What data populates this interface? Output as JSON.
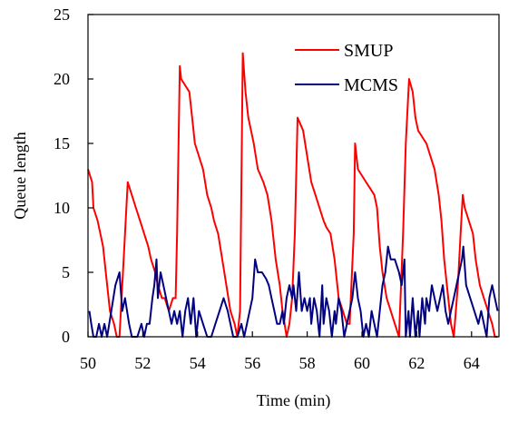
{
  "chart_data": {
    "type": "line",
    "title": "",
    "xlabel": "Time (min)",
    "ylabel": "Queue length",
    "xlim": [
      50,
      65
    ],
    "ylim": [
      0,
      25
    ],
    "xticks": [
      50,
      52,
      54,
      56,
      58,
      60,
      62,
      64
    ],
    "yticks": [
      0,
      5,
      10,
      15,
      20,
      25
    ],
    "grid": false,
    "legend": "top-right",
    "series": [
      {
        "name": "SMUP",
        "color": "#ff0000",
        "points": [
          [
            50.0,
            13
          ],
          [
            50.15,
            12
          ],
          [
            50.2,
            10
          ],
          [
            50.35,
            9
          ],
          [
            50.55,
            7
          ],
          [
            50.65,
            5
          ],
          [
            50.8,
            2
          ],
          [
            50.95,
            1
          ],
          [
            51.05,
            0
          ],
          [
            51.15,
            0
          ],
          [
            51.3,
            6
          ],
          [
            51.45,
            12
          ],
          [
            51.6,
            11
          ],
          [
            51.75,
            10
          ],
          [
            51.9,
            9
          ],
          [
            52.05,
            8
          ],
          [
            52.2,
            7
          ],
          [
            52.3,
            6
          ],
          [
            52.45,
            5
          ],
          [
            52.55,
            4
          ],
          [
            52.7,
            3
          ],
          [
            52.8,
            3
          ],
          [
            52.95,
            2
          ],
          [
            53.1,
            3
          ],
          [
            53.2,
            3
          ],
          [
            53.25,
            8
          ],
          [
            53.35,
            21
          ],
          [
            53.4,
            20
          ],
          [
            53.55,
            19.5
          ],
          [
            53.7,
            19
          ],
          [
            53.8,
            17
          ],
          [
            53.9,
            15
          ],
          [
            54.05,
            14
          ],
          [
            54.2,
            13
          ],
          [
            54.35,
            11
          ],
          [
            54.5,
            10
          ],
          [
            54.6,
            9
          ],
          [
            54.75,
            8
          ],
          [
            54.9,
            6
          ],
          [
            55.05,
            4
          ],
          [
            55.2,
            2
          ],
          [
            55.35,
            1
          ],
          [
            55.45,
            0
          ],
          [
            55.55,
            2
          ],
          [
            55.65,
            22
          ],
          [
            55.75,
            19
          ],
          [
            55.85,
            17
          ],
          [
            55.95,
            16
          ],
          [
            56.05,
            15
          ],
          [
            56.2,
            13
          ],
          [
            56.3,
            12.5
          ],
          [
            56.4,
            12
          ],
          [
            56.55,
            11
          ],
          [
            56.7,
            9
          ],
          [
            56.85,
            6
          ],
          [
            57.0,
            4
          ],
          [
            57.1,
            2
          ],
          [
            57.25,
            0
          ],
          [
            57.35,
            1
          ],
          [
            57.45,
            3
          ],
          [
            57.55,
            8
          ],
          [
            57.65,
            17
          ],
          [
            57.75,
            16.5
          ],
          [
            57.85,
            16
          ],
          [
            58.0,
            14
          ],
          [
            58.15,
            12
          ],
          [
            58.3,
            11
          ],
          [
            58.45,
            10
          ],
          [
            58.6,
            9
          ],
          [
            58.7,
            8.5
          ],
          [
            58.85,
            8
          ],
          [
            59.0,
            6
          ],
          [
            59.15,
            3
          ],
          [
            59.3,
            2
          ],
          [
            59.45,
            1
          ],
          [
            59.55,
            1
          ],
          [
            59.7,
            8
          ],
          [
            59.75,
            15
          ],
          [
            59.85,
            13
          ],
          [
            60.0,
            12.5
          ],
          [
            60.15,
            12
          ],
          [
            60.3,
            11.5
          ],
          [
            60.45,
            11
          ],
          [
            60.55,
            10
          ],
          [
            60.65,
            7
          ],
          [
            60.75,
            5
          ],
          [
            60.9,
            3
          ],
          [
            61.05,
            2
          ],
          [
            61.2,
            1
          ],
          [
            61.35,
            0
          ],
          [
            61.5,
            8
          ],
          [
            61.6,
            15
          ],
          [
            61.72,
            20
          ],
          [
            61.85,
            19
          ],
          [
            61.95,
            17
          ],
          [
            62.05,
            16
          ],
          [
            62.2,
            15.5
          ],
          [
            62.35,
            15
          ],
          [
            62.5,
            14
          ],
          [
            62.65,
            13
          ],
          [
            62.8,
            11
          ],
          [
            62.9,
            9
          ],
          [
            63.0,
            6
          ],
          [
            63.15,
            3
          ],
          [
            63.25,
            1
          ],
          [
            63.35,
            0
          ],
          [
            63.5,
            4
          ],
          [
            63.6,
            8
          ],
          [
            63.68,
            11
          ],
          [
            63.75,
            10
          ],
          [
            63.9,
            9
          ],
          [
            64.05,
            8
          ],
          [
            64.15,
            6
          ],
          [
            64.3,
            4
          ],
          [
            64.45,
            3
          ],
          [
            64.6,
            2
          ],
          [
            64.75,
            1
          ],
          [
            64.85,
            0
          ],
          [
            64.95,
            0
          ]
        ]
      },
      {
        "name": "MCMS",
        "color": "#000080",
        "points": [
          [
            50.05,
            2
          ],
          [
            50.12,
            1
          ],
          [
            50.2,
            0
          ],
          [
            50.3,
            0
          ],
          [
            50.4,
            1
          ],
          [
            50.5,
            0
          ],
          [
            50.6,
            1
          ],
          [
            50.7,
            0
          ],
          [
            50.85,
            2
          ],
          [
            51.0,
            4
          ],
          [
            51.15,
            5
          ],
          [
            51.25,
            2
          ],
          [
            51.35,
            3
          ],
          [
            51.5,
            1
          ],
          [
            51.6,
            0
          ],
          [
            51.7,
            0
          ],
          [
            51.8,
            0
          ],
          [
            51.95,
            1
          ],
          [
            52.05,
            0
          ],
          [
            52.15,
            1
          ],
          [
            52.25,
            1
          ],
          [
            52.35,
            3
          ],
          [
            52.42,
            4
          ],
          [
            52.5,
            6
          ],
          [
            52.55,
            3
          ],
          [
            52.65,
            5
          ],
          [
            52.75,
            4
          ],
          [
            52.85,
            3
          ],
          [
            52.95,
            2
          ],
          [
            53.05,
            1
          ],
          [
            53.15,
            2
          ],
          [
            53.25,
            1
          ],
          [
            53.35,
            2
          ],
          [
            53.45,
            0
          ],
          [
            53.55,
            2
          ],
          [
            53.65,
            3
          ],
          [
            53.75,
            1
          ],
          [
            53.85,
            3
          ],
          [
            53.95,
            0
          ],
          [
            54.05,
            2
          ],
          [
            54.2,
            1
          ],
          [
            54.35,
            0
          ],
          [
            54.5,
            0
          ],
          [
            54.65,
            1
          ],
          [
            54.8,
            2
          ],
          [
            54.95,
            3
          ],
          [
            55.1,
            2
          ],
          [
            55.2,
            1
          ],
          [
            55.3,
            0
          ],
          [
            55.45,
            0
          ],
          [
            55.6,
            1
          ],
          [
            55.7,
            0
          ],
          [
            55.8,
            1
          ],
          [
            55.9,
            2
          ],
          [
            56.0,
            3
          ],
          [
            56.1,
            6
          ],
          [
            56.2,
            5
          ],
          [
            56.35,
            5
          ],
          [
            56.5,
            4.5
          ],
          [
            56.6,
            4
          ],
          [
            56.7,
            3
          ],
          [
            56.8,
            2
          ],
          [
            56.9,
            1
          ],
          [
            57.0,
            1
          ],
          [
            57.1,
            2
          ],
          [
            57.15,
            1
          ],
          [
            57.25,
            3
          ],
          [
            57.35,
            4
          ],
          [
            57.45,
            3
          ],
          [
            57.5,
            4
          ],
          [
            57.6,
            2
          ],
          [
            57.7,
            5
          ],
          [
            57.8,
            2
          ],
          [
            57.9,
            3
          ],
          [
            58.0,
            2
          ],
          [
            58.1,
            3
          ],
          [
            58.15,
            1
          ],
          [
            58.25,
            3
          ],
          [
            58.35,
            2
          ],
          [
            58.45,
            0
          ],
          [
            58.55,
            4
          ],
          [
            58.6,
            1
          ],
          [
            58.7,
            3
          ],
          [
            58.8,
            2
          ],
          [
            58.9,
            0
          ],
          [
            59.0,
            2
          ],
          [
            59.05,
            1
          ],
          [
            59.15,
            3
          ],
          [
            59.25,
            2
          ],
          [
            59.35,
            0
          ],
          [
            59.45,
            1
          ],
          [
            59.55,
            2
          ],
          [
            59.65,
            3
          ],
          [
            59.75,
            5
          ],
          [
            59.85,
            3
          ],
          [
            59.95,
            2
          ],
          [
            60.05,
            0
          ],
          [
            60.15,
            1
          ],
          [
            60.25,
            0
          ],
          [
            60.35,
            2
          ],
          [
            60.45,
            1
          ],
          [
            60.55,
            0
          ],
          [
            60.65,
            2
          ],
          [
            60.75,
            4
          ],
          [
            60.85,
            5
          ],
          [
            60.95,
            7
          ],
          [
            61.05,
            6
          ],
          [
            61.2,
            6
          ],
          [
            61.35,
            5
          ],
          [
            61.45,
            4
          ],
          [
            61.55,
            6
          ],
          [
            61.6,
            0
          ],
          [
            61.7,
            2
          ],
          [
            61.75,
            0
          ],
          [
            61.85,
            3
          ],
          [
            61.95,
            0
          ],
          [
            62.05,
            2
          ],
          [
            62.1,
            0
          ],
          [
            62.2,
            3
          ],
          [
            62.3,
            1
          ],
          [
            62.35,
            3
          ],
          [
            62.45,
            2
          ],
          [
            62.55,
            4
          ],
          [
            62.65,
            3
          ],
          [
            62.75,
            2
          ],
          [
            62.85,
            3
          ],
          [
            62.95,
            4
          ],
          [
            63.05,
            2
          ],
          [
            63.15,
            1
          ],
          [
            63.25,
            2
          ],
          [
            63.35,
            3
          ],
          [
            63.45,
            4
          ],
          [
            63.55,
            5
          ],
          [
            63.65,
            6
          ],
          [
            63.7,
            7
          ],
          [
            63.8,
            4
          ],
          [
            63.95,
            3
          ],
          [
            64.1,
            2
          ],
          [
            64.25,
            1
          ],
          [
            64.35,
            2
          ],
          [
            64.45,
            1
          ],
          [
            64.55,
            0
          ],
          [
            64.65,
            3
          ],
          [
            64.75,
            4
          ],
          [
            64.85,
            3
          ],
          [
            64.95,
            2
          ]
        ]
      }
    ]
  }
}
